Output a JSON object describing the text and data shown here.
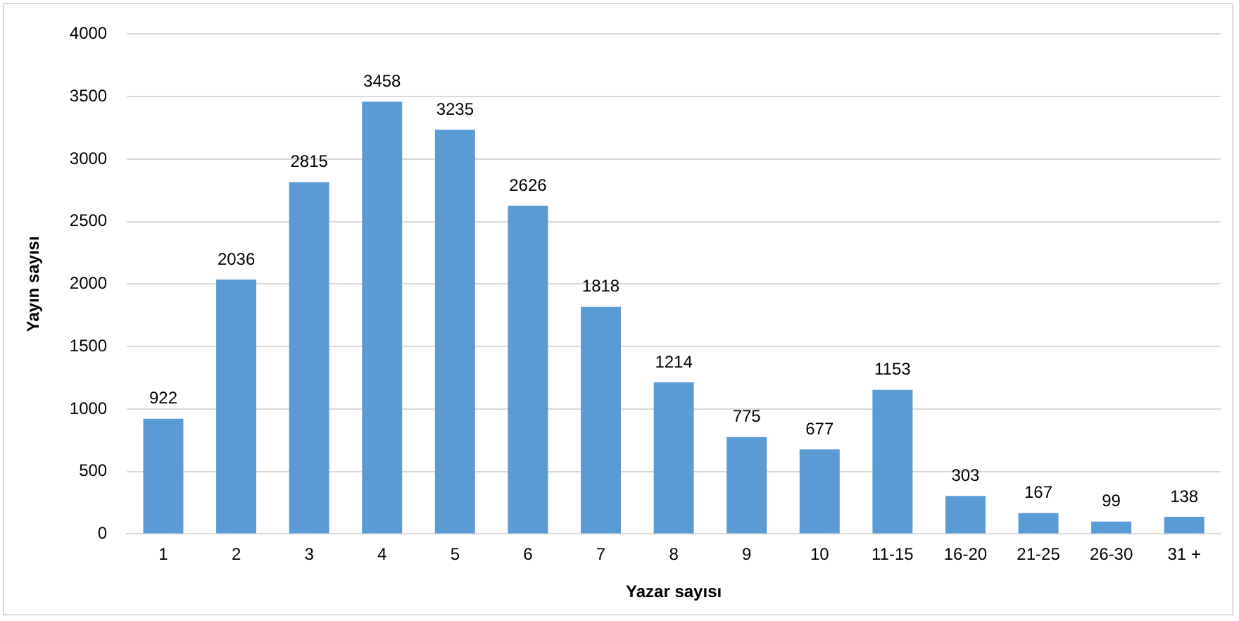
{
  "chart_data": {
    "type": "bar",
    "xlabel": "Yazar sayısı",
    "ylabel": "Yayın sayısı",
    "categories": [
      "1",
      "2",
      "3",
      "4",
      "5",
      "6",
      "7",
      "8",
      "9",
      "10",
      "11-15",
      "16-20",
      "21-25",
      "26-30",
      "31 +"
    ],
    "values": [
      922,
      2036,
      2815,
      3458,
      3235,
      2626,
      1818,
      1214,
      775,
      677,
      1153,
      303,
      167,
      99,
      138
    ],
    "color": "#5b9bd5",
    "ylim": [
      0,
      4000
    ],
    "yticks": [
      0,
      500,
      1000,
      1500,
      2000,
      2500,
      3000,
      3500,
      4000
    ],
    "grid": "y",
    "data_labels": true,
    "legend": false
  }
}
